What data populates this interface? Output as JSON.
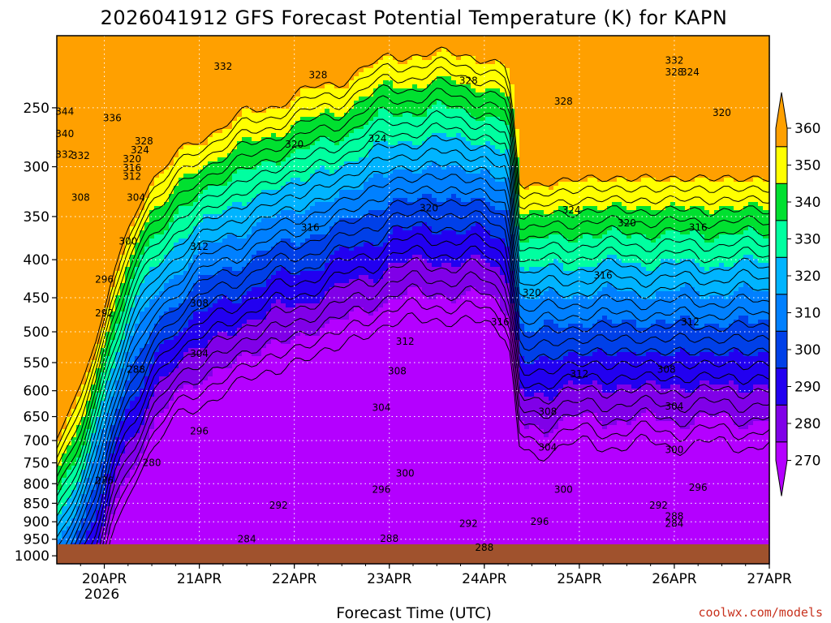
{
  "chart_data": {
    "type": "heatmap",
    "subtype": "filled-contour",
    "title": "2026041912 GFS Forecast Potential Temperature (K) for KAPN",
    "xlabel": "Forecast Time (UTC)",
    "ylabel": "",
    "x_range": [
      "2026-04-19 12UTC",
      "2026-04-27 00UTC"
    ],
    "x_ticks": [
      {
        "value": "2026-04-20 00UTC",
        "label": "20APR",
        "sublabel": "2026"
      },
      {
        "value": "2026-04-21 00UTC",
        "label": "21APR"
      },
      {
        "value": "2026-04-22 00UTC",
        "label": "22APR"
      },
      {
        "value": "2026-04-23 00UTC",
        "label": "23APR"
      },
      {
        "value": "2026-04-24 00UTC",
        "label": "24APR"
      },
      {
        "value": "2026-04-25 00UTC",
        "label": "25APR"
      },
      {
        "value": "2026-04-26 00UTC",
        "label": "26APR"
      },
      {
        "value": "2026-04-27 00UTC",
        "label": "27APR"
      }
    ],
    "y_scale": "log",
    "y_direction": "decreasing-upward",
    "y_range": [
      1025,
      200
    ],
    "y_ticks": [
      250,
      300,
      350,
      400,
      450,
      500,
      550,
      600,
      650,
      700,
      750,
      800,
      850,
      900,
      950,
      1000
    ],
    "grid": true,
    "fill_levels": [
      270,
      280,
      290,
      300,
      310,
      320,
      330,
      340,
      350,
      360
    ],
    "fill_colors": [
      "#b400ff",
      "#8000e8",
      "#2200f0",
      "#0040e8",
      "#0080ff",
      "#00b4ff",
      "#00ffa0",
      "#00e030",
      "#ffff00",
      "#ffa000"
    ],
    "contour_interval": 4,
    "contour_labels": [
      {
        "t": "2026-04-19 18UTC",
        "p": 290,
        "value": 332
      },
      {
        "t": "2026-04-19 14UTC",
        "p": 253,
        "value": 344
      },
      {
        "t": "2026-04-19 14UTC",
        "p": 271,
        "value": 340
      },
      {
        "t": "2026-04-19 14UTC",
        "p": 289,
        "value": 332
      },
      {
        "t": "2026-04-20 02UTC",
        "p": 258,
        "value": 336
      },
      {
        "t": "2026-04-20 10UTC",
        "p": 277,
        "value": 328
      },
      {
        "t": "2026-04-20 09UTC",
        "p": 285,
        "value": 324
      },
      {
        "t": "2026-04-20 07UTC",
        "p": 293,
        "value": 320
      },
      {
        "t": "2026-04-20 07UTC",
        "p": 301,
        "value": 316
      },
      {
        "t": "2026-04-20 07UTC",
        "p": 309,
        "value": 312
      },
      {
        "t": "2026-04-19 18UTC",
        "p": 330,
        "value": 308
      },
      {
        "t": "2026-04-20 08UTC",
        "p": 330,
        "value": 304
      },
      {
        "t": "2026-04-20 06UTC",
        "p": 378,
        "value": 300
      },
      {
        "t": "2026-04-20 00UTC",
        "p": 425,
        "value": 296
      },
      {
        "t": "2026-04-20 00UTC",
        "p": 472,
        "value": 292
      },
      {
        "t": "2026-04-20 08UTC",
        "p": 562,
        "value": 288
      },
      {
        "t": "2026-04-20 12UTC",
        "p": 750,
        "value": 280
      },
      {
        "t": "2026-04-20 00UTC",
        "p": 792,
        "value": 276
      },
      {
        "t": "2026-04-21 06UTC",
        "p": 220,
        "value": 332
      },
      {
        "t": "2026-04-22 06UTC",
        "p": 226,
        "value": 328
      },
      {
        "t": "2026-04-23 20UTC",
        "p": 230,
        "value": 328
      },
      {
        "t": "2026-04-24 20UTC",
        "p": 245,
        "value": 328
      },
      {
        "t": "2026-04-22 00UTC",
        "p": 280,
        "value": 320
      },
      {
        "t": "2026-04-22 21UTC",
        "p": 275,
        "value": 324
      },
      {
        "t": "2026-04-26 00UTC",
        "p": 216,
        "value": 332
      },
      {
        "t": "2026-04-26 00UTC",
        "p": 224,
        "value": 328
      },
      {
        "t": "2026-04-26 04UTC",
        "p": 224,
        "value": 324
      },
      {
        "t": "2026-04-26 12UTC",
        "p": 254,
        "value": 320
      },
      {
        "t": "2026-04-23 10UTC",
        "p": 341,
        "value": 320
      },
      {
        "t": "2026-04-22 04UTC",
        "p": 362,
        "value": 316
      },
      {
        "t": "2026-04-21 00UTC",
        "p": 384,
        "value": 312
      },
      {
        "t": "2026-04-24 22UTC",
        "p": 343,
        "value": 324
      },
      {
        "t": "2026-04-25 12UTC",
        "p": 357,
        "value": 320
      },
      {
        "t": "2026-04-26 06UTC",
        "p": 362,
        "value": 316
      },
      {
        "t": "2026-04-24 12UTC",
        "p": 443,
        "value": 320
      },
      {
        "t": "2026-04-25 06UTC",
        "p": 420,
        "value": 316
      },
      {
        "t": "2026-04-21 00UTC",
        "p": 458,
        "value": 308
      },
      {
        "t": "2026-04-24 04UTC",
        "p": 485,
        "value": 316
      },
      {
        "t": "2026-04-23 04UTC",
        "p": 515,
        "value": 312
      },
      {
        "t": "2026-04-26 04UTC",
        "p": 485,
        "value": 312
      },
      {
        "t": "2026-04-21 00UTC",
        "p": 535,
        "value": 304
      },
      {
        "t": "2026-04-23 02UTC",
        "p": 565,
        "value": 308
      },
      {
        "t": "2026-04-25 00UTC",
        "p": 570,
        "value": 312
      },
      {
        "t": "2026-04-25 22UTC",
        "p": 562,
        "value": 308
      },
      {
        "t": "2026-04-22 22UTC",
        "p": 632,
        "value": 304
      },
      {
        "t": "2026-04-24 16UTC",
        "p": 640,
        "value": 308
      },
      {
        "t": "2026-04-26 00UTC",
        "p": 630,
        "value": 304
      },
      {
        "t": "2026-04-21 00UTC",
        "p": 680,
        "value": 296
      },
      {
        "t": "2026-04-24 16UTC",
        "p": 715,
        "value": 304
      },
      {
        "t": "2026-04-26 00UTC",
        "p": 720,
        "value": 300
      },
      {
        "t": "2026-04-23 04UTC",
        "p": 775,
        "value": 300
      },
      {
        "t": "2026-04-24 20UTC",
        "p": 815,
        "value": 300
      },
      {
        "t": "2026-04-22 22UTC",
        "p": 815,
        "value": 296
      },
      {
        "t": "2026-04-26 06UTC",
        "p": 810,
        "value": 296
      },
      {
        "t": "2026-04-21 20UTC",
        "p": 855,
        "value": 292
      },
      {
        "t": "2026-04-25 20UTC",
        "p": 855,
        "value": 292
      },
      {
        "t": "2026-04-26 00UTC",
        "p": 885,
        "value": 288
      },
      {
        "t": "2026-04-26 00UTC",
        "p": 905,
        "value": 284
      },
      {
        "t": "2026-04-23 20UTC",
        "p": 905,
        "value": 292
      },
      {
        "t": "2026-04-24 14UTC",
        "p": 900,
        "value": 296
      },
      {
        "t": "2026-04-21 12UTC",
        "p": 950,
        "value": 284
      },
      {
        "t": "2026-04-23 00UTC",
        "p": 948,
        "value": 288
      },
      {
        "t": "2026-04-24 00UTC",
        "p": 975,
        "value": 288
      }
    ]
  },
  "colorbar": {
    "labels": [
      "270",
      "280",
      "290",
      "300",
      "310",
      "320",
      "330",
      "340",
      "350",
      "360"
    ]
  },
  "credit": "coolwx.com/models",
  "colors": {
    "ground": "#a0522d",
    "contour": "#000000",
    "grid": "#ffffff"
  }
}
